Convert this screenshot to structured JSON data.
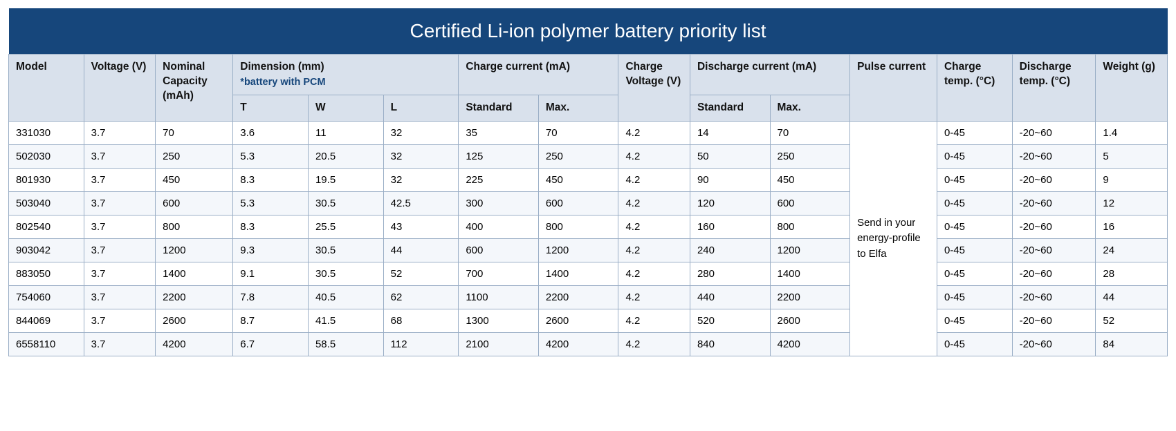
{
  "title": "Certified Li-ion polymer battery priority list",
  "columns": {
    "model": "Model",
    "voltage": "Voltage (V)",
    "capacity": "Nominal Capacity (mAh)",
    "dimension": "Dimension (mm)",
    "dimension_note": "*battery with PCM",
    "dim_t": "T",
    "dim_w": "W",
    "dim_l": "L",
    "charge_current": "Charge current (mA)",
    "cc_std": "Standard",
    "cc_max": "Max.",
    "charge_voltage": "Charge Voltage (V)",
    "discharge_current": "Discharge current (mA)",
    "dc_std": "Standard",
    "dc_max": "Max.",
    "pulse": "Pulse current",
    "charge_temp": "Charge temp. (°C)",
    "discharge_temp": "Discharge temp. (°C)",
    "weight": "Weight (g)"
  },
  "pulse_text": "Send in your energy-profile to Elfa",
  "col_widths_pct": [
    6.3,
    6.0,
    6.5,
    6.3,
    6.3,
    6.3,
    6.7,
    6.7,
    6.0,
    6.7,
    6.7,
    7.3,
    6.3,
    7.0,
    6.0
  ],
  "colors": {
    "header_bg": "#16467b",
    "header_text": "#ffffff",
    "th_bg": "#d9e1ec",
    "border": "#9aaec6",
    "row_alt": "#f4f7fb",
    "note": "#16467b"
  },
  "rows": [
    {
      "model": "331030",
      "voltage": "3.7",
      "capacity": "70",
      "t": "3.6",
      "w": "11",
      "l": "32",
      "cc_std": "35",
      "cc_max": "70",
      "cv": "4.2",
      "dc_std": "14",
      "dc_max": "70",
      "ct": "0-45",
      "dt": "-20~60",
      "wt": "1.4"
    },
    {
      "model": "502030",
      "voltage": "3.7",
      "capacity": "250",
      "t": "5.3",
      "w": "20.5",
      "l": "32",
      "cc_std": "125",
      "cc_max": "250",
      "cv": "4.2",
      "dc_std": "50",
      "dc_max": "250",
      "ct": "0-45",
      "dt": "-20~60",
      "wt": "5"
    },
    {
      "model": "801930",
      "voltage": "3.7",
      "capacity": "450",
      "t": "8.3",
      "w": "19.5",
      "l": "32",
      "cc_std": "225",
      "cc_max": "450",
      "cv": "4.2",
      "dc_std": "90",
      "dc_max": "450",
      "ct": "0-45",
      "dt": "-20~60",
      "wt": "9"
    },
    {
      "model": "503040",
      "voltage": "3.7",
      "capacity": "600",
      "t": "5.3",
      "w": "30.5",
      "l": "42.5",
      "cc_std": "300",
      "cc_max": "600",
      "cv": "4.2",
      "dc_std": "120",
      "dc_max": "600",
      "ct": "0-45",
      "dt": "-20~60",
      "wt": "12"
    },
    {
      "model": "802540",
      "voltage": "3.7",
      "capacity": "800",
      "t": "8.3",
      "w": "25.5",
      "l": "43",
      "cc_std": "400",
      "cc_max": "800",
      "cv": "4.2",
      "dc_std": "160",
      "dc_max": "800",
      "ct": "0-45",
      "dt": "-20~60",
      "wt": "16"
    },
    {
      "model": "903042",
      "voltage": "3.7",
      "capacity": "1200",
      "t": "9.3",
      "w": "30.5",
      "l": "44",
      "cc_std": "600",
      "cc_max": "1200",
      "cv": "4.2",
      "dc_std": "240",
      "dc_max": "1200",
      "ct": "0-45",
      "dt": "-20~60",
      "wt": "24"
    },
    {
      "model": "883050",
      "voltage": "3.7",
      "capacity": "1400",
      "t": "9.1",
      "w": "30.5",
      "l": "52",
      "cc_std": "700",
      "cc_max": "1400",
      "cv": "4.2",
      "dc_std": "280",
      "dc_max": "1400",
      "ct": "0-45",
      "dt": "-20~60",
      "wt": "28"
    },
    {
      "model": "754060",
      "voltage": "3.7",
      "capacity": "2200",
      "t": "7.8",
      "w": "40.5",
      "l": "62",
      "cc_std": "1100",
      "cc_max": "2200",
      "cv": "4.2",
      "dc_std": "440",
      "dc_max": "2200",
      "ct": "0-45",
      "dt": "-20~60",
      "wt": "44"
    },
    {
      "model": "844069",
      "voltage": "3.7",
      "capacity": "2600",
      "t": "8.7",
      "w": "41.5",
      "l": "68",
      "cc_std": "1300",
      "cc_max": "2600",
      "cv": "4.2",
      "dc_std": "520",
      "dc_max": "2600",
      "ct": "0-45",
      "dt": "-20~60",
      "wt": "52"
    },
    {
      "model": "6558110",
      "voltage": "3.7",
      "capacity": "4200",
      "t": "6.7",
      "w": "58.5",
      "l": "112",
      "cc_std": "2100",
      "cc_max": "4200",
      "cv": "4.2",
      "dc_std": "840",
      "dc_max": "4200",
      "ct": "0-45",
      "dt": "-20~60",
      "wt": "84"
    }
  ]
}
